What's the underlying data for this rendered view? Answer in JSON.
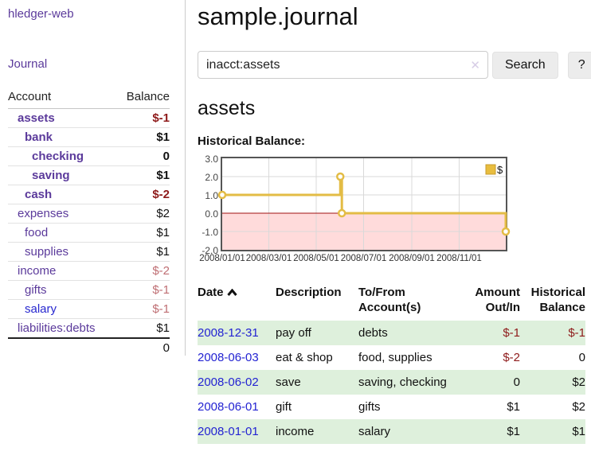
{
  "colors": {
    "accent_purple": "#5b3a9b",
    "link_blue": "#2727cf",
    "date_link_blue": "#2323d2",
    "negative_strong": "#8e1a1a",
    "negative_soft": "#bf6e73",
    "row_green": "#def0dc",
    "chart_line_gold": "#e3bc45",
    "chart_negative_fill": "#ffdbdb",
    "chart_zero_line": "#a01010"
  },
  "sidebar": {
    "app_title": "hledger-web",
    "journal_link": "Journal",
    "account_header": "Account",
    "balance_header": "Balance",
    "accounts": [
      {
        "name": "assets",
        "balance": "$-1",
        "level": 1,
        "bold": true,
        "balance_style": "neg-strong",
        "name_style": "purple"
      },
      {
        "name": "bank",
        "balance": "$1",
        "level": 2,
        "bold": true,
        "balance_style": "pos",
        "name_style": "purple"
      },
      {
        "name": "checking",
        "balance": "0",
        "level": 3,
        "bold": true,
        "balance_style": "pos",
        "name_style": "purple"
      },
      {
        "name": "saving",
        "balance": "$1",
        "level": 3,
        "bold": true,
        "balance_style": "pos",
        "name_style": "purple"
      },
      {
        "name": "cash",
        "balance": "$-2",
        "level": 2,
        "bold": true,
        "balance_style": "neg-strong",
        "name_style": "purple"
      },
      {
        "name": "expenses",
        "balance": "$2",
        "level": 1,
        "bold": false,
        "balance_style": "pos",
        "name_style": "purple"
      },
      {
        "name": "food",
        "balance": "$1",
        "level": 2,
        "bold": false,
        "balance_style": "pos",
        "name_style": "purple"
      },
      {
        "name": "supplies",
        "balance": "$1",
        "level": 2,
        "bold": false,
        "balance_style": "pos",
        "name_style": "purple"
      },
      {
        "name": "income",
        "balance": "$-2",
        "level": 1,
        "bold": false,
        "balance_style": "neg-soft",
        "name_style": "purple"
      },
      {
        "name": "gifts",
        "balance": "$-1",
        "level": 2,
        "bold": false,
        "balance_style": "neg-soft",
        "name_style": "purple"
      },
      {
        "name": "salary",
        "balance": "$-1",
        "level": 2,
        "bold": false,
        "balance_style": "neg-soft",
        "name_style": "blue"
      },
      {
        "name": "liabilities:debts",
        "balance": "$1",
        "level": 1,
        "bold": false,
        "balance_style": "pos",
        "name_style": "purple"
      }
    ],
    "total": "0"
  },
  "main": {
    "title": "sample.journal",
    "search": {
      "value": "inacct:assets",
      "clear_icon": "✕",
      "search_button": "Search",
      "help_button": "?"
    },
    "account_heading": "assets",
    "chart_title": "Historical Balance:"
  },
  "chart_data": {
    "type": "line",
    "step": true,
    "title": "Historical Balance",
    "series": [
      {
        "name": "$",
        "points": [
          [
            "2008-01-01",
            1
          ],
          [
            "2008-06-01",
            2
          ],
          [
            "2008-06-03",
            0
          ],
          [
            "2008-12-31",
            -1
          ]
        ]
      }
    ],
    "x_range": [
      "2008-01-01",
      "2008-12-31"
    ],
    "ylim": [
      -2,
      3
    ],
    "yticks": [
      "3.0",
      "2.0",
      "1.0",
      "0.0",
      "-1.0",
      "-2.0"
    ],
    "xticks": [
      {
        "date": "2008-01-01",
        "label": "2008/01/01"
      },
      {
        "date": "2008-03-01",
        "label": "2008/03/01"
      },
      {
        "date": "2008-05-01",
        "label": "2008/05/01"
      },
      {
        "date": "2008-07-01",
        "label": "2008/07/01"
      },
      {
        "date": "2008-09-01",
        "label": "2008/09/01"
      },
      {
        "date": "2008-11-01",
        "label": "2008/11/01"
      }
    ],
    "legend": {
      "label": "$",
      "position": "top-right"
    },
    "grid": true
  },
  "register": {
    "headers": {
      "date": "Date",
      "description": "Description",
      "accounts": "To/From Account(s)",
      "amount": "Amount Out/In",
      "balance": "Historical Balance"
    },
    "rows": [
      {
        "date": "2008-12-31",
        "description": "pay off",
        "accounts": "debts",
        "amount": "$-1",
        "amount_neg": true,
        "balance": "$-1",
        "balance_neg": true,
        "shaded": true
      },
      {
        "date": "2008-06-03",
        "description": "eat & shop",
        "accounts": "food, supplies",
        "amount": "$-2",
        "amount_neg": true,
        "balance": "0",
        "balance_neg": false,
        "shaded": false
      },
      {
        "date": "2008-06-02",
        "description": "save",
        "accounts": "saving, checking",
        "amount": "0",
        "amount_neg": false,
        "balance": "$2",
        "balance_neg": false,
        "shaded": true
      },
      {
        "date": "2008-06-01",
        "description": "gift",
        "accounts": "gifts",
        "amount": "$1",
        "amount_neg": false,
        "balance": "$2",
        "balance_neg": false,
        "shaded": false
      },
      {
        "date": "2008-01-01",
        "description": "income",
        "accounts": "salary",
        "amount": "$1",
        "amount_neg": false,
        "balance": "$1",
        "balance_neg": false,
        "shaded": true
      }
    ]
  }
}
